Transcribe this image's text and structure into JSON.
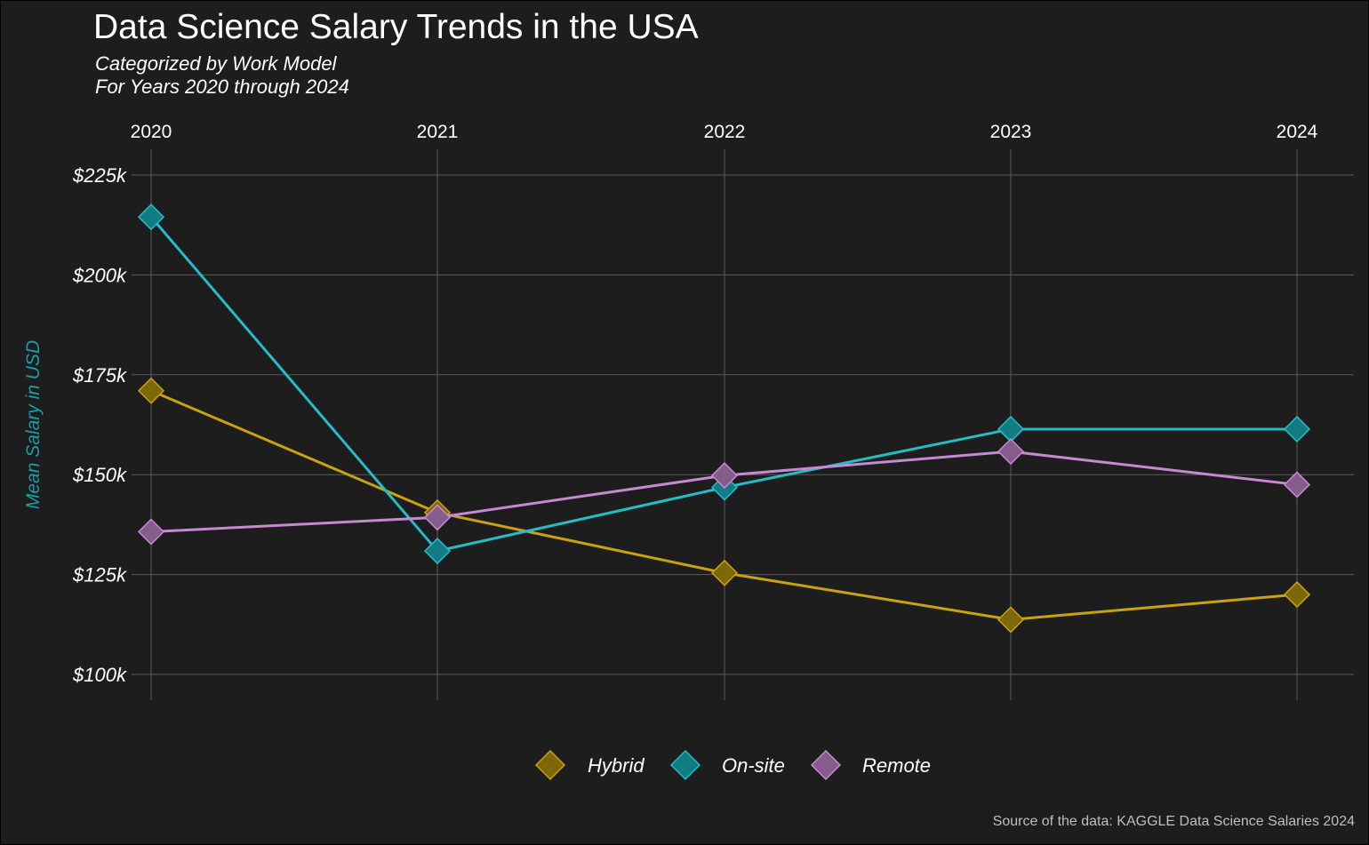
{
  "title": "Data Science Salary Trends in the USA",
  "subtitle_line1": "Categorized by Work Model",
  "subtitle_line2": "For Years 2020 through 2024",
  "caption": "Source of the data: KAGGLE Data Science Salaries 2024",
  "colors": {
    "background": "#1d1d1d",
    "grid": "#5a5a5a",
    "ylabel": "#1a9ea6"
  },
  "chart_data": {
    "type": "line",
    "title": "Data Science Salary Trends in the USA",
    "xlabel": "",
    "ylabel": "Mean Salary in USD",
    "x": [
      2020,
      2021,
      2022,
      2023,
      2024
    ],
    "x_ticks": [
      "2020",
      "2021",
      "2022",
      "2023",
      "2024"
    ],
    "y_ticks": [
      100000,
      125000,
      150000,
      175000,
      200000,
      225000
    ],
    "y_tick_labels": [
      "$100k",
      "$125k",
      "$150k",
      "$175k",
      "$200k",
      "$225k"
    ],
    "ylim": [
      94000,
      230000
    ],
    "grid": true,
    "x_axis_position": "top",
    "legend_position": "bottom",
    "series": [
      {
        "name": "Hybrid",
        "color": "#c9a212",
        "fill": "#7d6709",
        "values": [
          171000,
          140500,
          125400,
          113700,
          120000
        ]
      },
      {
        "name": "On-site",
        "color": "#25bcc6",
        "fill": "#127c82",
        "values": [
          214500,
          130900,
          146800,
          161400,
          161400
        ]
      },
      {
        "name": "Remote",
        "color": "#c58ad0",
        "fill": "#855c8b",
        "values": [
          135700,
          139300,
          149800,
          155800,
          147500
        ]
      }
    ]
  }
}
